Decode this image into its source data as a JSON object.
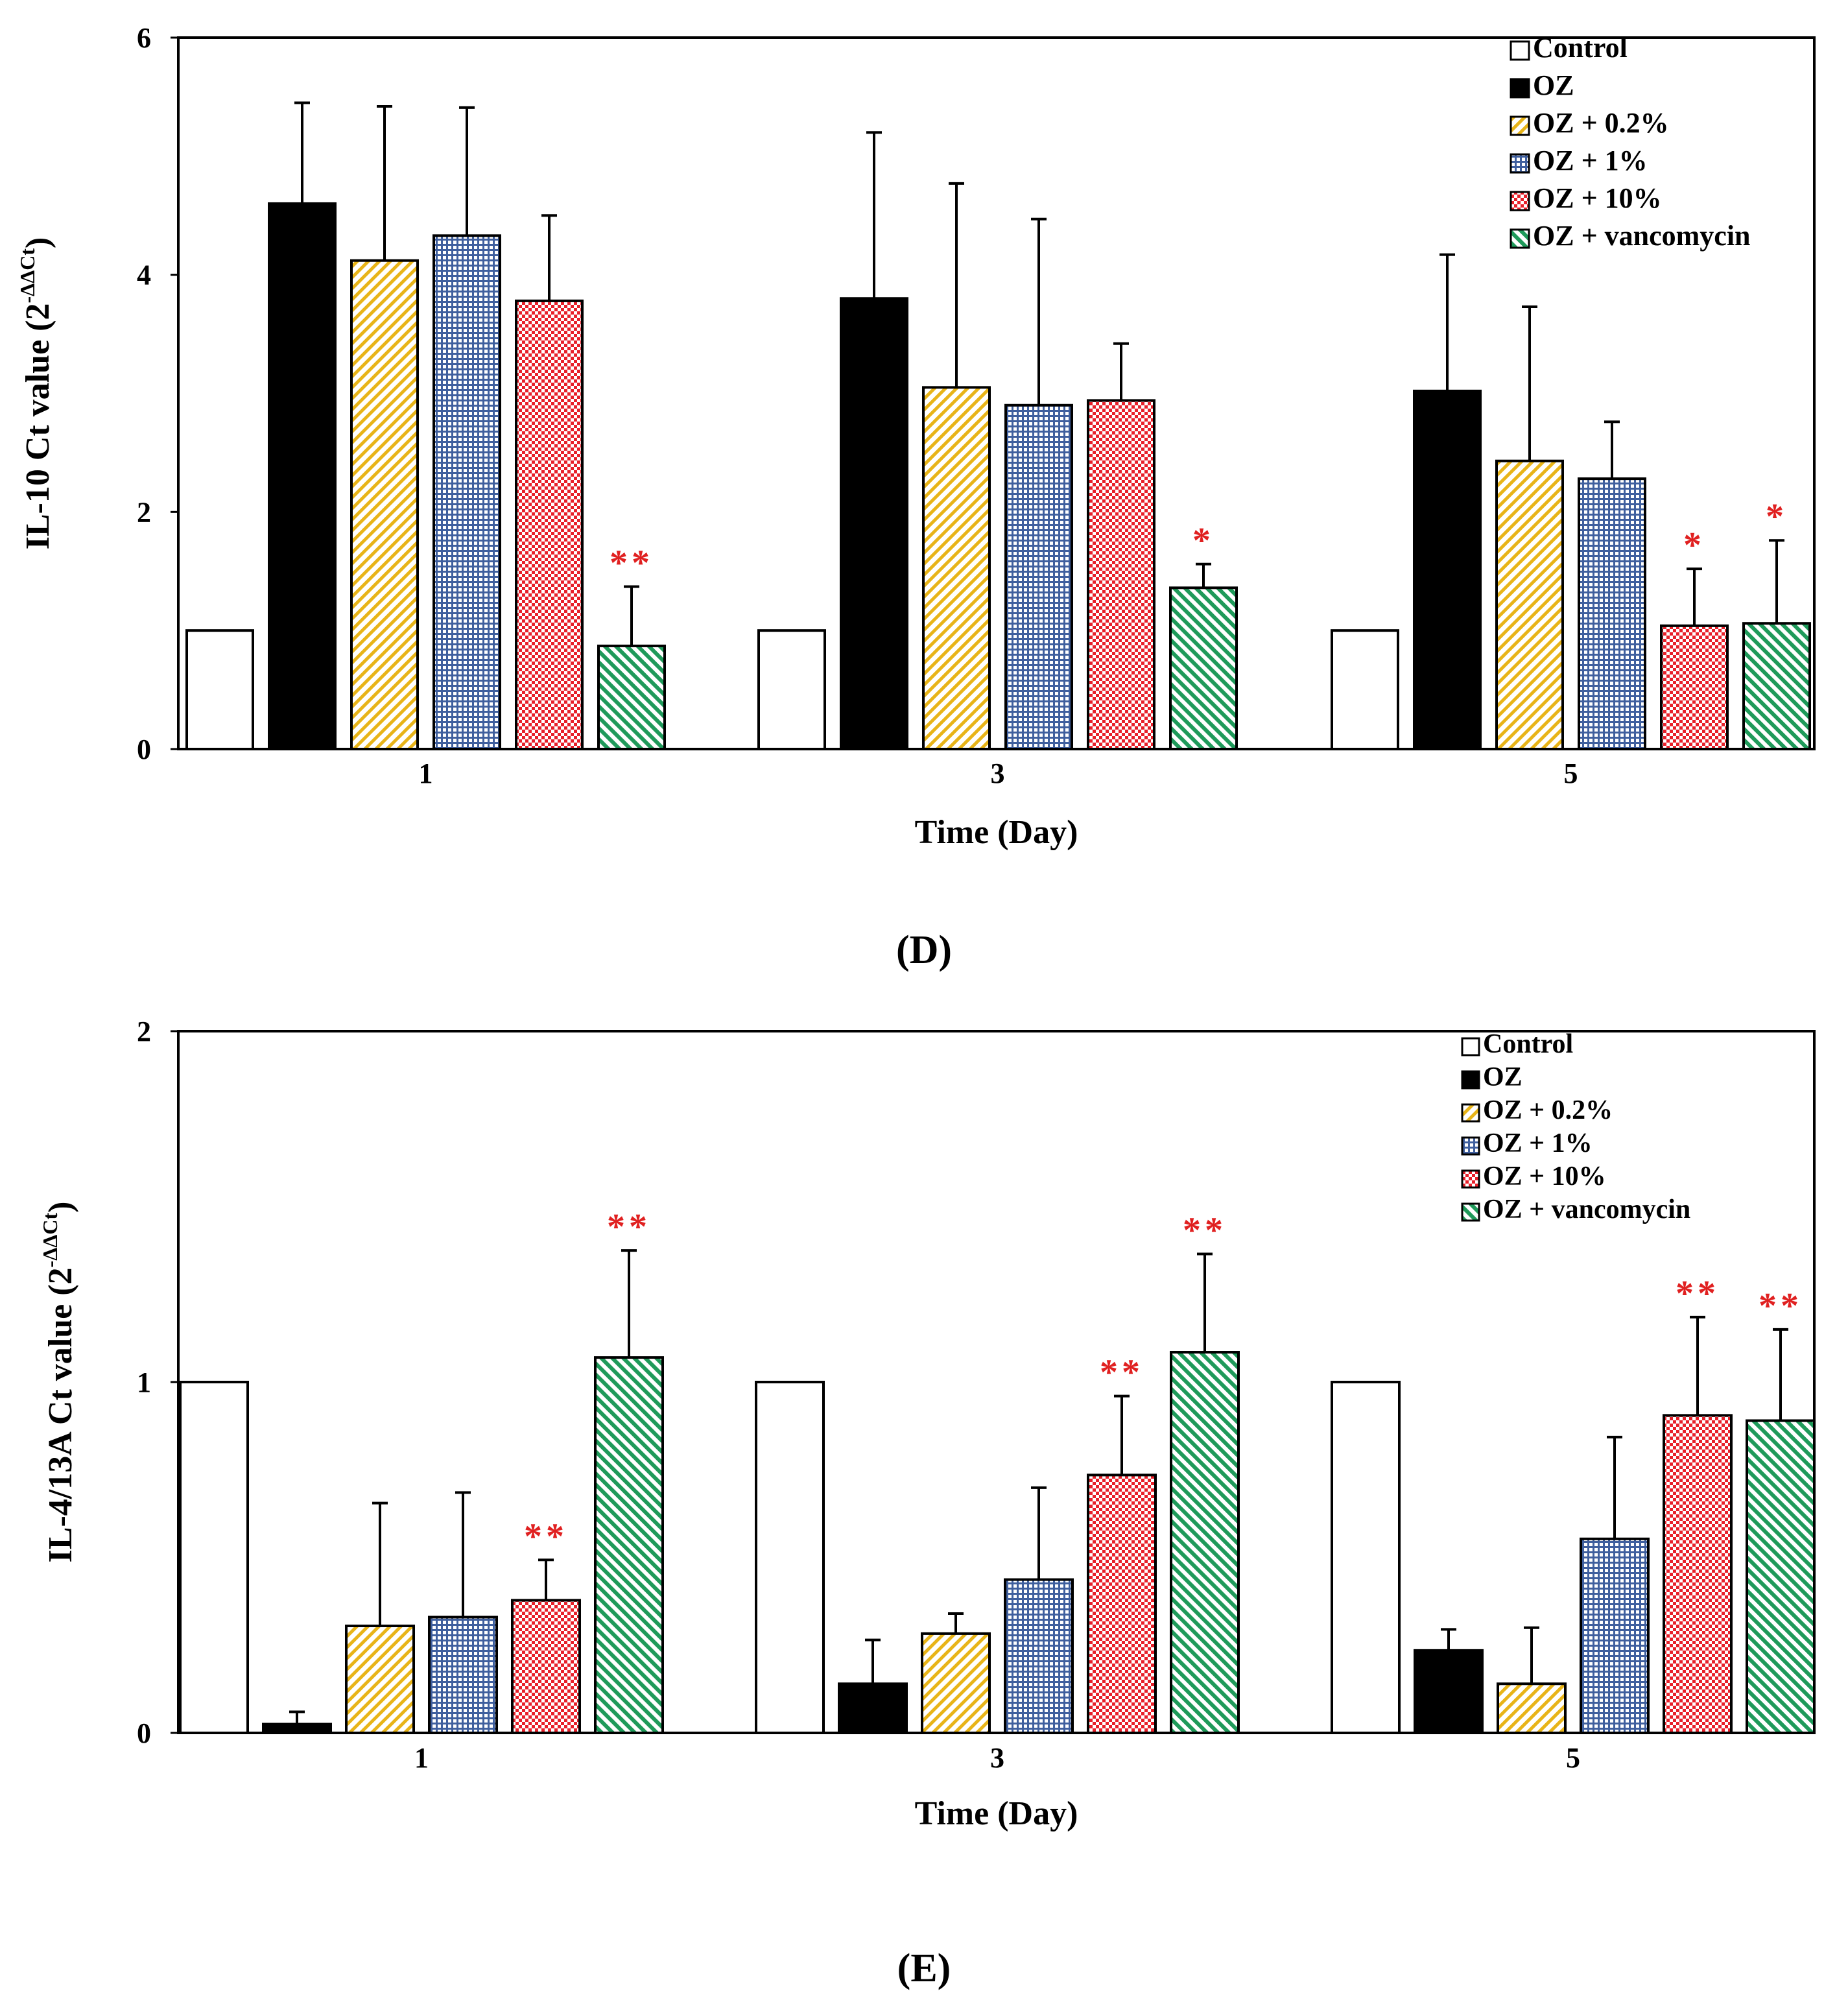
{
  "figure": {
    "panels": [
      "(D)",
      "(E)"
    ]
  },
  "colors": {
    "control": "#ffffff",
    "oz": "#000000",
    "oz_0_2": "#e8b418",
    "oz_1": "#3f5f9e",
    "oz_10": "#e8202a",
    "oz_vanc": "#1f9a5a",
    "significance": "#e02020"
  },
  "chart_data": [
    {
      "panel": "(D)",
      "type": "bar",
      "title": "",
      "xlabel": "Time (Day)",
      "ylabel": "IL-10 Ct value (2",
      "ylabel_sup": "-ΔΔCt",
      "ylabel_close": ")",
      "ylim": [
        0,
        6
      ],
      "yticks": [
        "0",
        "2",
        "4",
        "6"
      ],
      "ytick_values": [
        0,
        2,
        4,
        6
      ],
      "categories": [
        "1",
        "3",
        "5"
      ],
      "legend_position": "top-right",
      "series": [
        {
          "name": "Control",
          "values": [
            1.0,
            1.0,
            1.0
          ],
          "errors": [
            0,
            0,
            0
          ],
          "sig": [
            "",
            "",
            ""
          ]
        },
        {
          "name": "OZ",
          "values": [
            4.6,
            3.8,
            3.02
          ],
          "errors": [
            0.85,
            1.4,
            1.15
          ],
          "sig": [
            "",
            "",
            ""
          ]
        },
        {
          "name": "OZ + 0.2%",
          "values": [
            4.12,
            3.05,
            2.43
          ],
          "errors": [
            1.3,
            1.72,
            1.3
          ],
          "sig": [
            "",
            "",
            ""
          ]
        },
        {
          "name": "OZ + 1%",
          "values": [
            4.33,
            2.9,
            2.28
          ],
          "errors": [
            1.08,
            1.57,
            0.48
          ],
          "sig": [
            "",
            "",
            ""
          ]
        },
        {
          "name": "OZ + 10%",
          "values": [
            3.78,
            2.94,
            1.04
          ],
          "errors": [
            0.72,
            0.48,
            0.48
          ],
          "sig": [
            "",
            "",
            "*"
          ]
        },
        {
          "name": "OZ + vancomycin",
          "values": [
            0.87,
            1.36,
            1.06
          ],
          "errors": [
            0.5,
            0.2,
            0.7
          ],
          "sig": [
            "**",
            "*",
            "*"
          ]
        }
      ]
    },
    {
      "panel": "(E)",
      "type": "bar",
      "title": "",
      "xlabel": "Time (Day)",
      "ylabel": "IL-4/13A Ct value (2",
      "ylabel_sup": "-ΔΔCt",
      "ylabel_close": ")",
      "ylim": [
        0,
        2
      ],
      "yticks": [
        "0",
        "1",
        "2"
      ],
      "ytick_values": [
        0,
        1,
        2
      ],
      "categories": [
        "1",
        "3",
        "5"
      ],
      "legend_position": "top-right",
      "series": [
        {
          "name": "Control",
          "values": [
            1.0,
            1.0,
            1.0
          ],
          "errors": [
            0,
            0,
            0
          ],
          "sig": [
            "",
            "",
            ""
          ]
        },
        {
          "name": "OZ",
          "values": [
            0.025,
            0.14,
            0.235
          ],
          "errors": [
            0.035,
            0.125,
            0.06
          ],
          "sig": [
            "",
            "",
            ""
          ]
        },
        {
          "name": "OZ + 0.2%",
          "values": [
            0.305,
            0.283,
            0.14
          ],
          "errors": [
            0.35,
            0.057,
            0.16
          ],
          "sig": [
            "",
            "",
            ""
          ]
        },
        {
          "name": "OZ + 1%",
          "values": [
            0.33,
            0.437,
            0.553
          ],
          "errors": [
            0.355,
            0.262,
            0.29
          ],
          "sig": [
            "",
            "",
            ""
          ]
        },
        {
          "name": "OZ + 10%",
          "values": [
            0.378,
            0.735,
            0.905
          ],
          "errors": [
            0.115,
            0.225,
            0.28
          ],
          "sig": [
            "**",
            "**",
            "**"
          ]
        },
        {
          "name": "OZ + vancomycin",
          "values": [
            1.07,
            1.085,
            0.89
          ],
          "errors": [
            0.305,
            0.28,
            0.26
          ],
          "sig": [
            "**",
            "**",
            "**"
          ]
        }
      ]
    }
  ]
}
